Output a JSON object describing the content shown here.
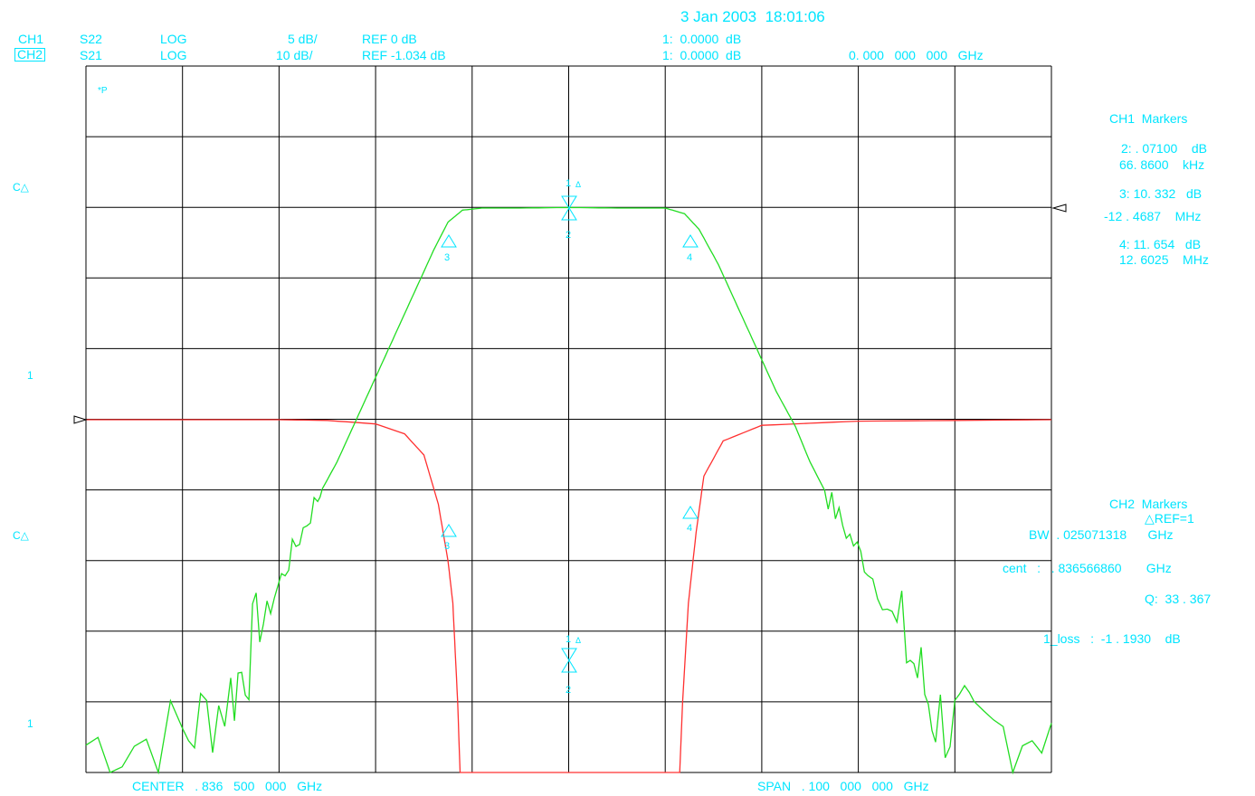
{
  "header": {
    "datetime": "3 Jan 2003  18:01:06",
    "ch1": {
      "name": "CH1",
      "param": "S22",
      "format": "LOG",
      "scale": "5 dB/",
      "ref": "REF 0 dB",
      "marker": "1:  0.0000  dB"
    },
    "ch2": {
      "name": "CH2",
      "param": "S21",
      "format": "LOG",
      "scale": "10 dB/",
      "ref": "REF -1.034 dB",
      "marker": "1:  0.0000  dB",
      "freq": "0. 000   000   000   GHz"
    }
  },
  "left_labels": {
    "c_top": "C△",
    "one_top": "1",
    "c_bottom": "C△",
    "one_bottom": "1"
  },
  "inplot_label": "*P",
  "footer": {
    "center": "CENTER   . 836   500   000   GHz",
    "span": "SPAN   . 100   000   000   GHz"
  },
  "ch1_markers": {
    "title": "CH1  Markers",
    "m2_val": "2: . 07100    dB",
    "m2_freq": "66. 8600    kHz",
    "m3_val": "3: 10. 332   dB",
    "m3_freq": "-12 . 4687    MHz",
    "m4_val": "4: 11. 654   dB",
    "m4_freq": "12. 6025    MHz"
  },
  "ch2_markers": {
    "title": "CH2  Markers",
    "ref": "△REF=1",
    "bw": "BW  . 025071318      GHz",
    "cent": "cent   :   . 836566860       GHz",
    "q": "Q:  33 . 367",
    "loss": "1_loss   :  -1 . 1930    dB"
  },
  "colors": {
    "annotation": "#00e5ff",
    "ch1_trace": "#ff3030",
    "ch2_trace": "#22dd22",
    "grid": "#000000"
  },
  "chart_data": {
    "type": "line",
    "x_center_ghz": 0.8365,
    "x_span_ghz": 0.1,
    "divisions_x": 10,
    "divisions_y": 10,
    "series": [
      {
        "name": "S22",
        "points": [
          [
            -0.05,
            0
          ],
          [
            -0.03,
            0
          ],
          [
            -0.025,
            -0.05
          ],
          [
            -0.02,
            -0.3
          ],
          [
            -0.017,
            -1
          ],
          [
            -0.015,
            -2.5
          ],
          [
            -0.0135,
            -6
          ],
          [
            -0.0125,
            -10
          ],
          [
            -0.012,
            -13
          ],
          [
            -0.0115,
            -20
          ],
          [
            -0.011,
            -30
          ],
          [
            -0.0105,
            -38
          ],
          [
            -0.01,
            -50
          ],
          [
            -0.009,
            -50
          ],
          [
            -0.008,
            -44
          ],
          [
            -0.0065,
            -39.5
          ],
          [
            -0.005,
            -42
          ],
          [
            -0.004,
            -50
          ],
          [
            -0.0015,
            -50
          ],
          [
            -0.0005,
            -40
          ],
          [
            0.0005,
            -33
          ],
          [
            0.002,
            -31.5
          ],
          [
            0.0035,
            -31
          ],
          [
            0.005,
            -33
          ],
          [
            0.0065,
            -45
          ],
          [
            0.0075,
            -50
          ],
          [
            0.0085,
            -41
          ],
          [
            0.0095,
            -44
          ],
          [
            0.0103,
            -50
          ],
          [
            0.0108,
            -44
          ],
          [
            0.0112,
            -30
          ],
          [
            0.0118,
            -20
          ],
          [
            0.0124,
            -13
          ],
          [
            0.0132,
            -8
          ],
          [
            0.014,
            -4
          ],
          [
            0.016,
            -1.5
          ],
          [
            0.02,
            -0.4
          ],
          [
            0.03,
            -0.1
          ],
          [
            0.05,
            0
          ]
        ]
      },
      {
        "name": "S21",
        "points": [
          [
            -0.05,
            -76
          ],
          [
            -0.04,
            -75
          ],
          [
            -0.035,
            -69
          ],
          [
            -0.032,
            -60
          ],
          [
            -0.029,
            -50
          ],
          [
            -0.026,
            -41
          ],
          [
            -0.024,
            -36
          ],
          [
            -0.022,
            -30
          ],
          [
            -0.02,
            -24
          ],
          [
            -0.018,
            -18
          ],
          [
            -0.016,
            -12
          ],
          [
            -0.014,
            -6
          ],
          [
            -0.0125,
            -2
          ],
          [
            -0.011,
            -0.3
          ],
          [
            -0.009,
            0
          ],
          [
            -0.005,
            0
          ],
          [
            0,
            0.08
          ],
          [
            0.005,
            0
          ],
          [
            0.01,
            0
          ],
          [
            0.012,
            -0.8
          ],
          [
            0.0135,
            -3
          ],
          [
            0.0155,
            -8
          ],
          [
            0.0175,
            -14
          ],
          [
            0.0195,
            -20
          ],
          [
            0.0215,
            -26
          ],
          [
            0.0235,
            -31
          ],
          [
            0.025,
            -36
          ],
          [
            0.028,
            -44
          ],
          [
            0.031,
            -51
          ],
          [
            0.035,
            -62
          ],
          [
            0.038,
            -72
          ],
          [
            0.042,
            -75
          ],
          [
            0.05,
            -73
          ]
        ]
      }
    ]
  }
}
